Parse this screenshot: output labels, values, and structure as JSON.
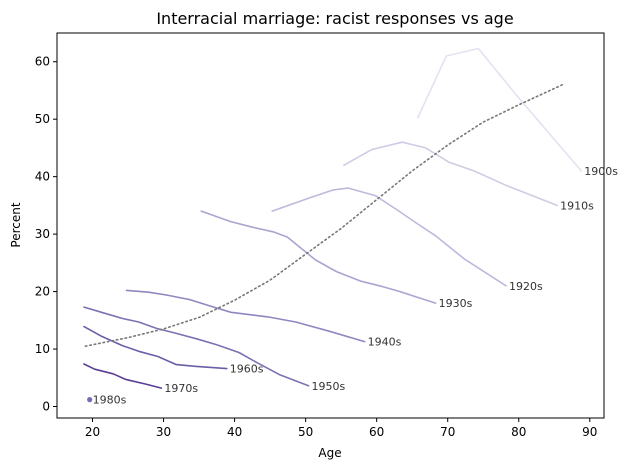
{
  "chart_data": {
    "type": "line",
    "title": "Interracial marriage: racist responses vs age",
    "xlabel": "Age",
    "ylabel": "Percent",
    "xlim": [
      15,
      92
    ],
    "ylim": [
      -2,
      65
    ],
    "xticks": [
      20,
      30,
      40,
      50,
      60,
      70,
      80,
      90
    ],
    "yticks": [
      0,
      10,
      20,
      30,
      40,
      50,
      60
    ],
    "grid": false,
    "trend": {
      "style": "dotted",
      "color": "#777777",
      "x": [
        19,
        25,
        30,
        35,
        40,
        45,
        50,
        55,
        60,
        65,
        70,
        75,
        80,
        86.5
      ],
      "y": [
        10.5,
        12.0,
        13.5,
        15.5,
        18.5,
        22.0,
        26.5,
        31.0,
        36.0,
        41.0,
        45.5,
        49.5,
        52.5,
        56.2
      ]
    },
    "series": [
      {
        "name": "1900s",
        "color": "#e4e2f0",
        "x": [
          65.8,
          69.8,
          74.3,
          79.8,
          88.8
        ],
        "y": [
          50.3,
          61.0,
          62.3,
          54.0,
          41.0
        ]
      },
      {
        "name": "1910s",
        "color": "#cfcce4",
        "x": [
          55.4,
          59.3,
          63.6,
          66.9,
          70.2,
          73.7,
          78.2,
          85.4
        ],
        "y": [
          42.0,
          44.7,
          46.0,
          45.0,
          42.5,
          41.0,
          38.5,
          35.0
        ]
      },
      {
        "name": "1920s",
        "color": "#bcbadc",
        "x": [
          45.3,
          50.3,
          53.9,
          56.0,
          59.8,
          62.9,
          65.5,
          68.3,
          72.3,
          78.2
        ],
        "y": [
          34.0,
          36.2,
          37.7,
          38.0,
          36.7,
          34.2,
          32.0,
          29.7,
          25.7,
          21.0
        ]
      },
      {
        "name": "1930s",
        "color": "#a9a5d1",
        "x": [
          35.3,
          39.4,
          42.5,
          45.4,
          47.4,
          51.4,
          54.3,
          57.8,
          60.4,
          63.3,
          65.7,
          68.3
        ],
        "y": [
          34.0,
          32.2,
          31.2,
          30.4,
          29.5,
          25.5,
          23.5,
          21.8,
          21.0,
          20.0,
          19.0,
          18.0
        ]
      },
      {
        "name": "1940s",
        "color": "#8f88c0",
        "x": [
          24.8,
          27.9,
          30.4,
          33.7,
          36.5,
          39.5,
          44.7,
          48.6,
          53.3,
          58.3
        ],
        "y": [
          20.2,
          19.9,
          19.4,
          18.6,
          17.5,
          16.4,
          15.6,
          14.7,
          13.1,
          11.3
        ]
      },
      {
        "name": "1950s",
        "color": "#7a72b2",
        "x": [
          18.8,
          21.5,
          24.3,
          26.5,
          29.0,
          31.6,
          34.9,
          37.6,
          40.6,
          43.2,
          46.4,
          50.4
        ],
        "y": [
          17.3,
          16.3,
          15.3,
          14.7,
          13.6,
          12.8,
          11.7,
          10.7,
          9.4,
          7.6,
          5.5,
          3.6
        ]
      },
      {
        "name": "1960s",
        "color": "#6b5ea8",
        "x": [
          18.8,
          21.3,
          24.2,
          26.5,
          29.2,
          31.8,
          34.4,
          38.9
        ],
        "y": [
          13.9,
          12.2,
          10.6,
          9.6,
          8.7,
          7.3,
          7.0,
          6.6
        ]
      },
      {
        "name": "1970s",
        "color": "#5b3e96",
        "x": [
          18.8,
          20.3,
          22.9,
          24.7,
          27.5,
          29.7
        ],
        "y": [
          7.4,
          6.5,
          5.7,
          4.7,
          3.9,
          3.2
        ]
      },
      {
        "name": "1980s",
        "color": "#7c68b4",
        "x": [
          19.6
        ],
        "y": [
          1.2
        ]
      }
    ]
  }
}
